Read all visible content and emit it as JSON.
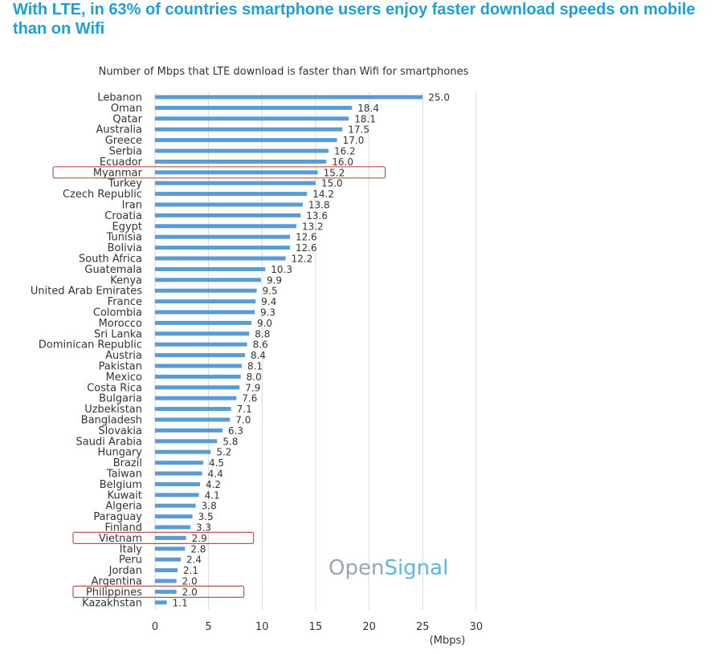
{
  "headline": "With LTE, in 63% of countries smartphone users enjoy faster download speeds on mobile than on Wifi",
  "brand": {
    "part1": "Open",
    "part2": "Signal"
  },
  "colors": {
    "bar": "#5b9bd5",
    "highlight_box": "#c0504d",
    "headline": "#1e9fd6",
    "grid": "#d9d9d9"
  },
  "chart_data": {
    "type": "bar",
    "orientation": "horizontal",
    "title": "Number of Mbps that LTE download is faster than Wifi for smartphones",
    "xlabel": "(Mbps)",
    "xlim": [
      0,
      30
    ],
    "xticks": [
      0,
      5,
      10,
      15,
      20,
      25,
      30
    ],
    "grid": true,
    "categories": [
      "Lebanon",
      "Oman",
      "Qatar",
      "Australia",
      "Greece",
      "Serbia",
      "Ecuador",
      "Myanmar",
      "Turkey",
      "Czech Republic",
      "Iran",
      "Croatia",
      "Egypt",
      "Tunisia",
      "Bolivia",
      "South Africa",
      "Guatemala",
      "Kenya",
      "United Arab Emirates",
      "France",
      "Colombia",
      "Morocco",
      "Sri Lanka",
      "Dominican Republic",
      "Austria",
      "Pakistan",
      "Mexico",
      "Costa Rica",
      "Bulgaria",
      "Uzbekistan",
      "Bangladesh",
      "Slovakia",
      "Saudi Arabia",
      "Hungary",
      "Brazil",
      "Taiwan",
      "Belgium",
      "Kuwait",
      "Algeria",
      "Paraguay",
      "Finland",
      "Vietnam",
      "Italy",
      "Peru",
      "Jordan",
      "Argentina",
      "Philippines",
      "Kazakhstan"
    ],
    "values": [
      25.0,
      18.4,
      18.1,
      17.5,
      17.0,
      16.2,
      16.0,
      15.2,
      15.0,
      14.2,
      13.8,
      13.6,
      13.2,
      12.6,
      12.6,
      12.2,
      10.3,
      9.9,
      9.5,
      9.4,
      9.3,
      9.0,
      8.8,
      8.6,
      8.4,
      8.1,
      8.0,
      7.9,
      7.6,
      7.1,
      7.0,
      6.3,
      5.8,
      5.2,
      4.5,
      4.4,
      4.2,
      4.1,
      3.8,
      3.5,
      3.3,
      2.9,
      2.8,
      2.4,
      2.1,
      2.0,
      2.0,
      1.1
    ],
    "value_labels": [
      "25.0",
      "18.4",
      "18.1",
      "17.5",
      "17.0",
      "16.2",
      "16.0",
      "15.2",
      "15.0",
      "14.2",
      "13.8",
      "13.6",
      "13.2",
      "12.6",
      "12.6",
      "12.2",
      "10.3",
      "9.9",
      "9.5",
      "9.4",
      "9.3",
      "9.0",
      "8.8",
      "8.6",
      "8.4",
      "8.1",
      "8.0",
      "7.9",
      "7.6",
      "7.1",
      "7.0",
      "6.3",
      "5.8",
      "5.2",
      "4.5",
      "4.4",
      "4.2",
      "4.1",
      "3.8",
      "3.5",
      "3.3",
      "2.9",
      "2.8",
      "2.4",
      "2.1",
      "2.0",
      "2.0",
      "1.1"
    ],
    "highlighted": [
      "Myanmar",
      "Vietnam",
      "Philippines"
    ]
  }
}
